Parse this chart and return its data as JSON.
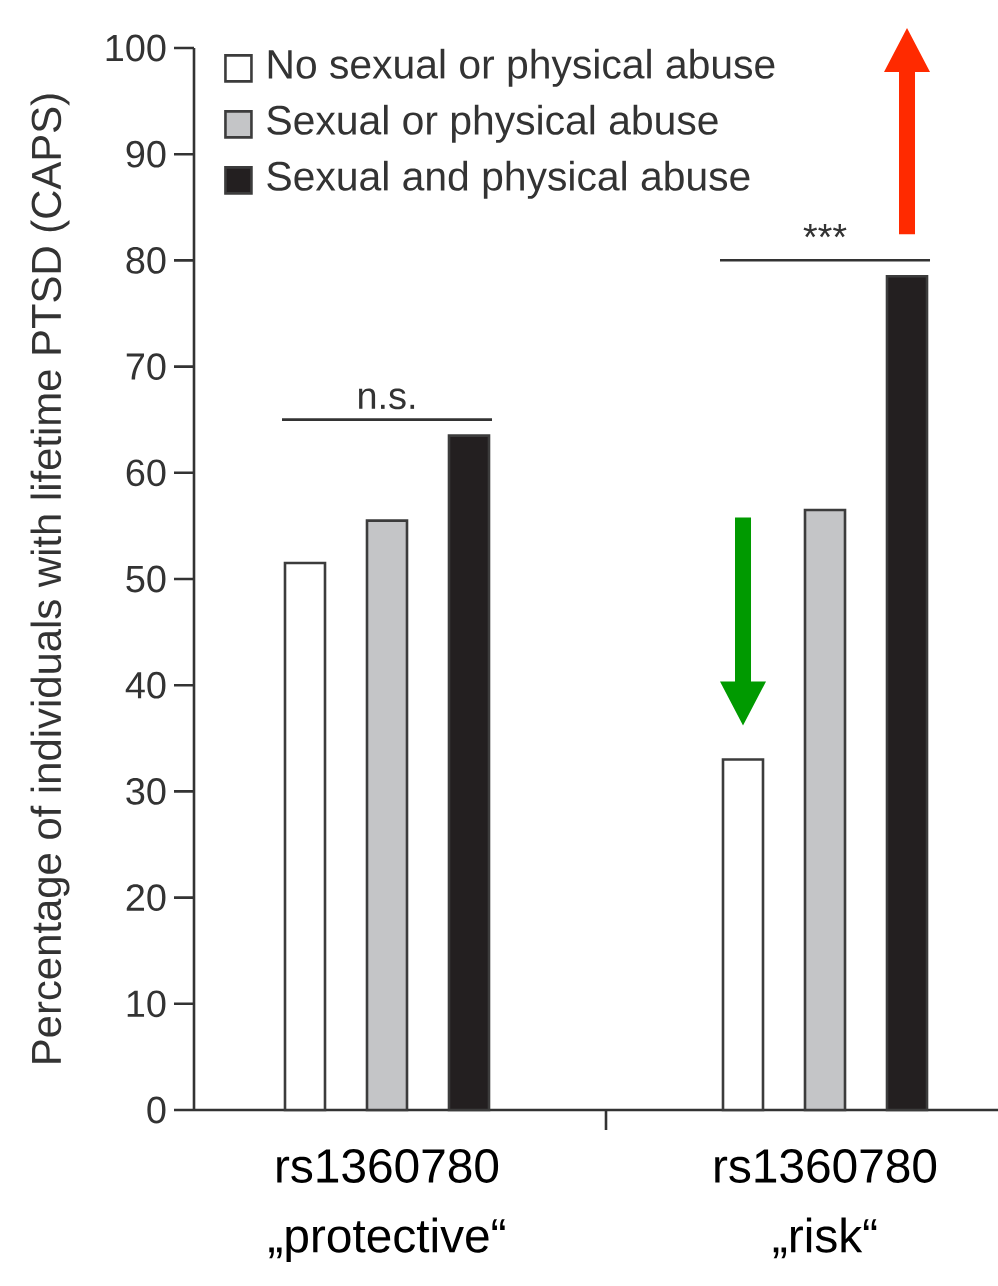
{
  "chart_data": {
    "type": "bar",
    "ylabel": "Percentage of individuals with lifetime PTSD (CAPS)",
    "categories": [
      "rs1360780 „protective“",
      "rs1360780 „risk“"
    ],
    "series": [
      {
        "name": "No sexual or physical abuse",
        "color": "#ffffff",
        "values": [
          51.5,
          33
        ]
      },
      {
        "name": "Sexual or physical abuse",
        "color": "#c4c5c7",
        "values": [
          55.5,
          56.5
        ]
      },
      {
        "name": "Sexual and physical abuse",
        "color": "#231f20",
        "values": [
          63.5,
          78.5
        ]
      }
    ],
    "ylim": [
      0,
      100
    ],
    "yticks": [
      0,
      10,
      20,
      30,
      40,
      50,
      60,
      70,
      80,
      90,
      100
    ],
    "legend": "top left",
    "annotations": [
      "n.s.",
      "***"
    ]
  }
}
